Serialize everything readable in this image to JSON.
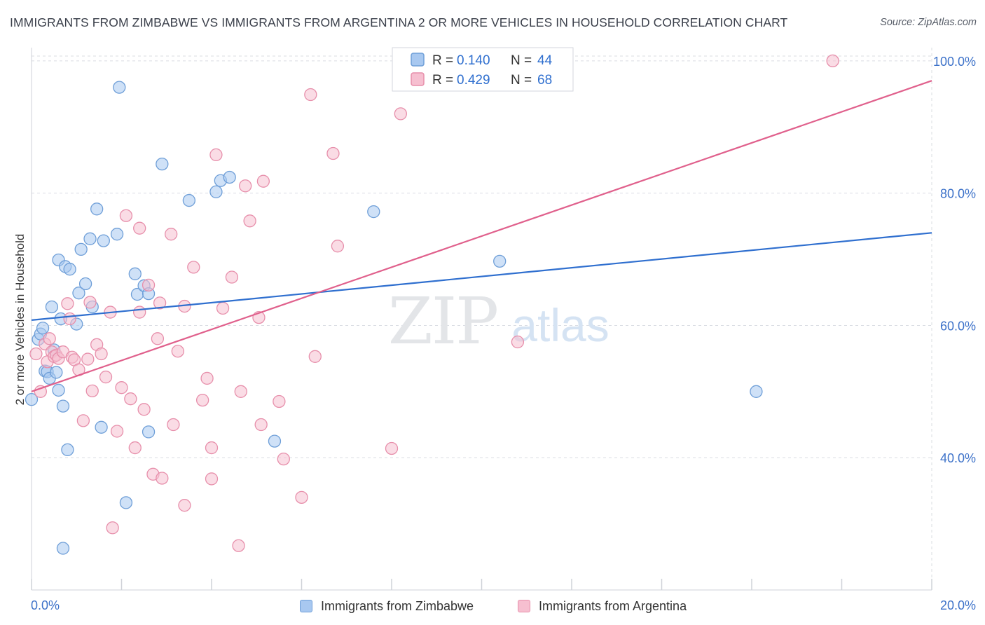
{
  "title": "IMMIGRANTS FROM ZIMBABWE VS IMMIGRANTS FROM ARGENTINA 2 OR MORE VEHICLES IN HOUSEHOLD CORRELATION CHART",
  "source": "Source: ZipAtlas.com",
  "watermark": {
    "zip": "ZIP",
    "atlas": "atlas"
  },
  "colors": {
    "blue_fill": "#a8c8f0",
    "blue_stroke": "#6f9fd8",
    "blue_line": "#2f6fcf",
    "pink_fill": "#f6bfd0",
    "pink_stroke": "#e78fab",
    "pink_line": "#e0608c",
    "tick_label": "#3d72c9",
    "grid": "#d9dce2"
  },
  "stats_box": {
    "rows": [
      {
        "r_label": "R = ",
        "r_value": "0.140",
        "n_label": "N = ",
        "n_value": "44"
      },
      {
        "r_label": "R = ",
        "r_value": "0.429",
        "n_label": "N = ",
        "n_value": "68"
      }
    ]
  },
  "chart_data": {
    "type": "scatter",
    "title": "IMMIGRANTS FROM ZIMBABWE VS IMMIGRANTS FROM ARGENTINA 2 OR MORE VEHICLES IN HOUSEHOLD CORRELATION CHART",
    "xlabel": "",
    "ylabel": "2 or more Vehicles in Household",
    "xlim": [
      0,
      20
    ],
    "ylim": [
      20,
      102
    ],
    "x_tick_labels": [
      {
        "x": 0,
        "label": "0.0%"
      },
      {
        "x": 20,
        "label": "20.0%"
      }
    ],
    "x_tick_marks": [
      0,
      2,
      4,
      6,
      8,
      10,
      12,
      14,
      16,
      18,
      20
    ],
    "y_ticks": [
      {
        "y": 40,
        "label": "40.0%"
      },
      {
        "y": 60,
        "label": "60.0%"
      },
      {
        "y": 80,
        "label": "80.0%"
      },
      {
        "y": 100,
        "label": "100.0%"
      }
    ],
    "grid": true,
    "legend_position": "bottom",
    "series": [
      {
        "name": "Immigrants from Zimbabwe",
        "color": "#a8c8f0",
        "trend": {
          "x": [
            0,
            20
          ],
          "y": [
            60.8,
            74.0
          ]
        },
        "points": [
          [
            0.0,
            48.8
          ],
          [
            0.15,
            57.9
          ],
          [
            0.2,
            58.7
          ],
          [
            0.25,
            59.6
          ],
          [
            0.3,
            53.1
          ],
          [
            0.35,
            53.0
          ],
          [
            0.4,
            52.0
          ],
          [
            0.45,
            62.8
          ],
          [
            0.5,
            56.3
          ],
          [
            0.55,
            52.9
          ],
          [
            0.6,
            50.2
          ],
          [
            0.6,
            69.9
          ],
          [
            0.65,
            61.0
          ],
          [
            0.7,
            47.8
          ],
          [
            0.75,
            68.9
          ],
          [
            0.8,
            41.2
          ],
          [
            0.85,
            68.5
          ],
          [
            1.0,
            60.2
          ],
          [
            1.05,
            64.9
          ],
          [
            1.1,
            71.5
          ],
          [
            1.2,
            66.3
          ],
          [
            1.3,
            73.1
          ],
          [
            1.35,
            62.8
          ],
          [
            1.45,
            77.6
          ],
          [
            1.55,
            44.6
          ],
          [
            1.6,
            72.8
          ],
          [
            1.9,
            73.8
          ],
          [
            1.95,
            96.0
          ],
          [
            2.1,
            33.2
          ],
          [
            2.3,
            67.8
          ],
          [
            2.35,
            64.7
          ],
          [
            2.5,
            66.0
          ],
          [
            2.6,
            64.8
          ],
          [
            2.6,
            43.9
          ],
          [
            2.9,
            84.4
          ],
          [
            3.5,
            78.9
          ],
          [
            4.1,
            80.2
          ],
          [
            4.2,
            81.9
          ],
          [
            4.4,
            82.4
          ],
          [
            5.4,
            42.5
          ],
          [
            7.6,
            77.2
          ],
          [
            10.4,
            69.7
          ],
          [
            16.1,
            50.0
          ],
          [
            0.7,
            26.3
          ]
        ]
      },
      {
        "name": "Immigrants from Argentina",
        "color": "#f6bfd0",
        "trend": {
          "x": [
            0,
            20
          ],
          "y": [
            50.0,
            97.0
          ]
        },
        "points": [
          [
            0.1,
            55.7
          ],
          [
            0.2,
            50.0
          ],
          [
            0.3,
            57.2
          ],
          [
            0.35,
            54.5
          ],
          [
            0.4,
            58.0
          ],
          [
            0.45,
            56.0
          ],
          [
            0.5,
            55.3
          ],
          [
            0.55,
            55.5
          ],
          [
            0.6,
            55.0
          ],
          [
            0.7,
            56.0
          ],
          [
            0.8,
            63.3
          ],
          [
            0.85,
            61.0
          ],
          [
            0.9,
            55.2
          ],
          [
            0.95,
            54.8
          ],
          [
            1.05,
            53.3
          ],
          [
            1.15,
            45.6
          ],
          [
            1.25,
            54.9
          ],
          [
            1.3,
            63.5
          ],
          [
            1.35,
            50.1
          ],
          [
            1.45,
            57.1
          ],
          [
            1.55,
            55.7
          ],
          [
            1.65,
            52.2
          ],
          [
            1.75,
            62.0
          ],
          [
            1.8,
            29.4
          ],
          [
            1.9,
            44.0
          ],
          [
            2.0,
            50.6
          ],
          [
            2.1,
            76.6
          ],
          [
            2.2,
            48.9
          ],
          [
            2.3,
            41.5
          ],
          [
            2.4,
            74.7
          ],
          [
            2.4,
            62.0
          ],
          [
            2.5,
            47.3
          ],
          [
            2.6,
            66.1
          ],
          [
            2.7,
            37.5
          ],
          [
            2.8,
            58.0
          ],
          [
            2.85,
            63.4
          ],
          [
            2.9,
            36.9
          ],
          [
            3.1,
            73.8
          ],
          [
            3.15,
            45.0
          ],
          [
            3.25,
            56.1
          ],
          [
            3.4,
            62.9
          ],
          [
            3.4,
            32.8
          ],
          [
            3.6,
            68.8
          ],
          [
            3.8,
            48.7
          ],
          [
            3.9,
            52.0
          ],
          [
            4.0,
            36.8
          ],
          [
            4.0,
            41.5
          ],
          [
            4.1,
            85.8
          ],
          [
            4.25,
            62.6
          ],
          [
            4.45,
            67.3
          ],
          [
            4.6,
            26.7
          ],
          [
            4.65,
            50.0
          ],
          [
            4.75,
            81.1
          ],
          [
            4.85,
            75.8
          ],
          [
            5.05,
            61.2
          ],
          [
            5.15,
            81.8
          ],
          [
            5.1,
            45.0
          ],
          [
            5.5,
            48.5
          ],
          [
            5.6,
            39.8
          ],
          [
            6.0,
            34.0
          ],
          [
            6.2,
            94.9
          ],
          [
            6.3,
            55.3
          ],
          [
            6.7,
            86.0
          ],
          [
            6.8,
            72.0
          ],
          [
            8.0,
            41.4
          ],
          [
            8.2,
            92.0
          ],
          [
            10.8,
            57.5
          ],
          [
            17.8,
            100.0
          ]
        ]
      }
    ]
  },
  "legend": {
    "items": [
      {
        "label": "Immigrants from Zimbabwe"
      },
      {
        "label": "Immigrants from Argentina"
      }
    ]
  }
}
